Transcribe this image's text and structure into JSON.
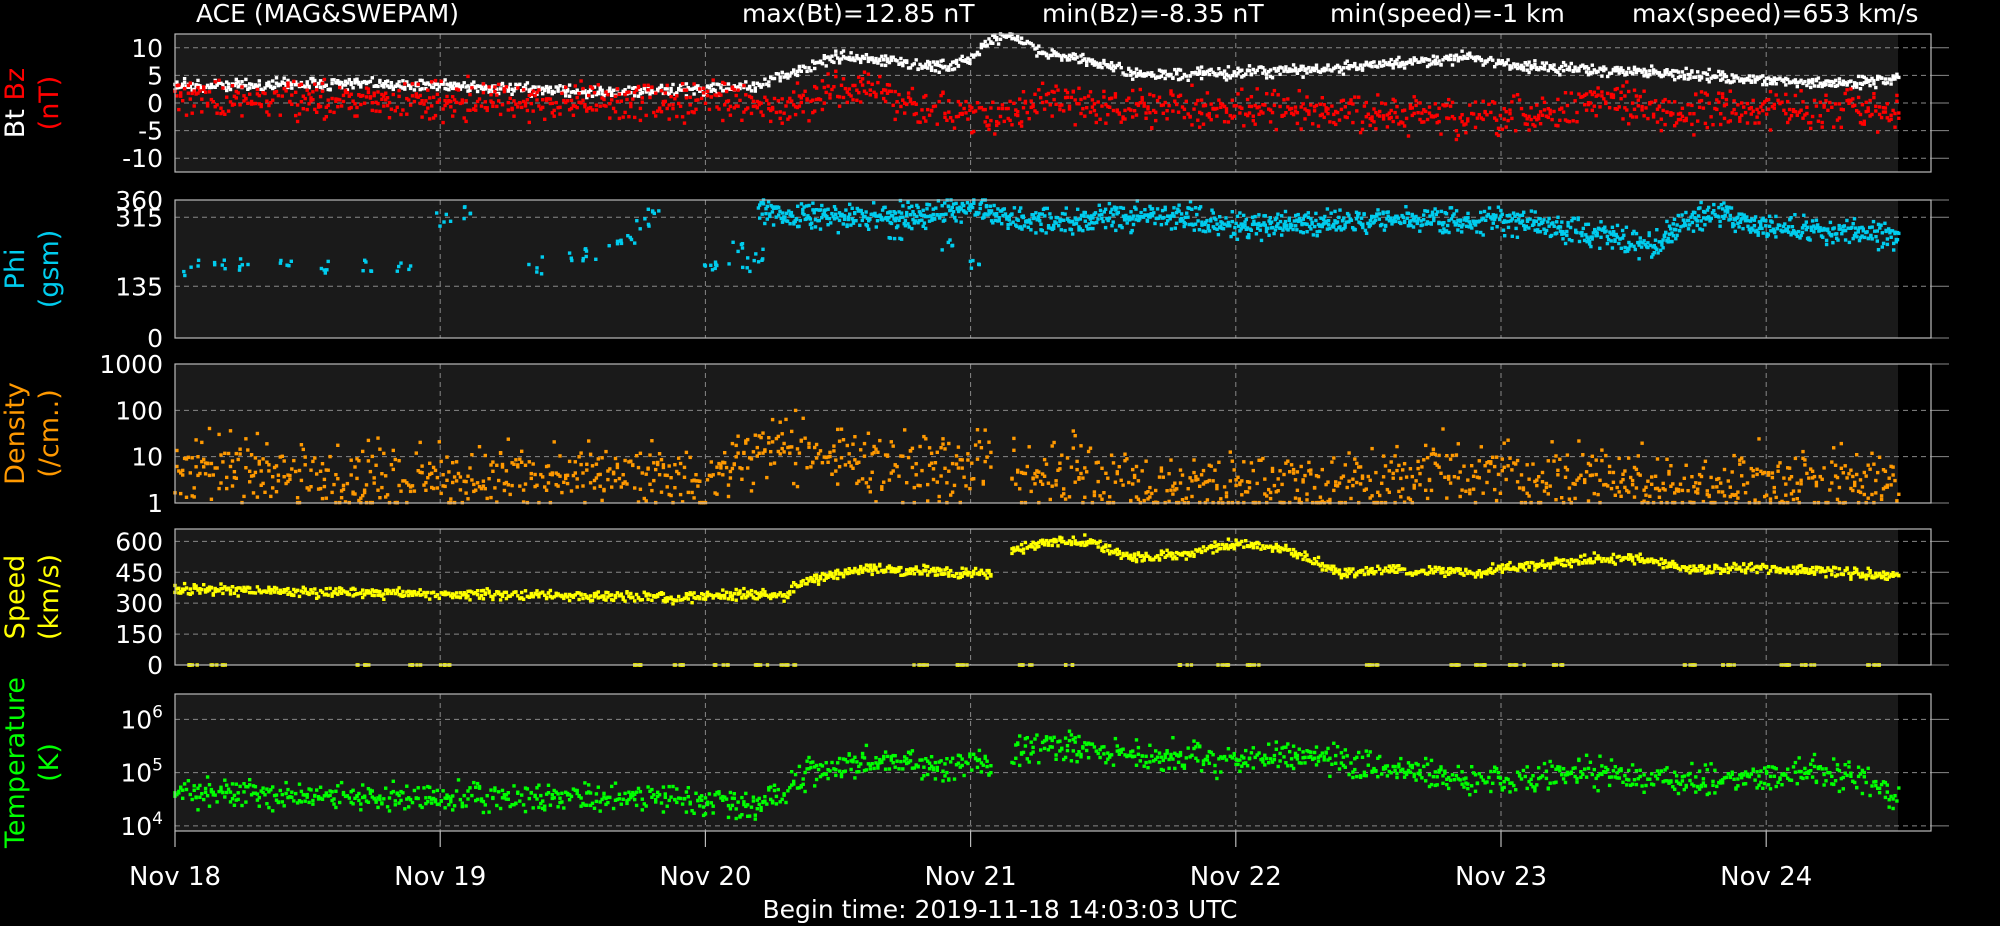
{
  "header": {
    "source": "ACE (MAG&SWEPAM)",
    "stats": [
      "max(Bt)=12.85 nT",
      "min(Bz)=-8.35 nT",
      "min(speed)=-1 km",
      "max(speed)=653 km/s"
    ]
  },
  "footer": {
    "begin_time": "Begin time: 2019-11-18 14:03:03 UTC"
  },
  "colors": {
    "bt": "#ffffff",
    "bz": "#ff0000",
    "phi": "#00ccee",
    "density": "#ff9900",
    "speed": "#ffff00",
    "temperature": "#00ff00",
    "panel_bg": "#1a1a1a",
    "grid": "#888888"
  },
  "chart_data": [
    {
      "type": "scatter",
      "ylabel_parts": [
        {
          "text": "Bt",
          "color": "#ffffff"
        },
        {
          "text": "Bz",
          "color": "#ff0000"
        },
        {
          "text": "(nT)",
          "color": "#ff0000"
        }
      ],
      "yscale": "linear",
      "ylim": [
        -12.5,
        12.5
      ],
      "yticks": [
        10,
        5,
        0,
        -5,
        -10
      ],
      "ytick_labels": [
        "10",
        "5",
        "0",
        "-5",
        "-10"
      ],
      "x_unit": "days since 2019-11-18 00:00 UTC",
      "xlim": [
        0,
        7.2
      ],
      "data_end": 6.5,
      "series": [
        {
          "name": "Bt",
          "color": "#ffffff",
          "x": [
            0,
            0.5,
            1,
            1.5,
            2,
            2.2,
            2.35,
            2.5,
            2.7,
            2.9,
            3.0,
            3.08,
            3.15,
            3.25,
            3.4,
            3.6,
            3.8,
            4.0,
            4.3,
            4.6,
            4.9,
            5.0,
            5.3,
            5.6,
            6.0,
            6.3,
            6.5
          ],
          "y": [
            3,
            3.5,
            3.2,
            2,
            2.5,
            3,
            6,
            8.5,
            7.5,
            6.5,
            8,
            11.5,
            12.5,
            9.5,
            8,
            5.5,
            5,
            5.5,
            6,
            7,
            8.5,
            7,
            6,
            5.5,
            4,
            3.5,
            4.5
          ],
          "noise": 0.5
        },
        {
          "name": "Bz",
          "color": "#ff0000",
          "x": [
            0,
            0.5,
            1,
            1.5,
            2,
            2.2,
            2.3,
            2.45,
            2.6,
            2.8,
            3.0,
            3.1,
            3.2,
            3.35,
            3.5,
            3.8,
            4.2,
            4.6,
            5.0,
            5.2,
            5.35,
            5.6,
            6.0,
            6.3,
            6.5
          ],
          "y": [
            1,
            0.5,
            0.5,
            0,
            0.5,
            1,
            -2,
            2,
            3,
            -1,
            -2,
            -3,
            -1,
            1,
            -1,
            -0.5,
            -1.5,
            -2,
            -3,
            -2,
            1,
            -1.5,
            -1,
            -1,
            -1
          ],
          "noise": 1.6
        }
      ]
    },
    {
      "type": "scatter",
      "ylabel_parts": [
        {
          "text": "Phi",
          "color": "#00ccee"
        },
        {
          "text": "(gsm)",
          "color": "#00ccee"
        }
      ],
      "yscale": "linear",
      "ylim": [
        0,
        360
      ],
      "yticks": [
        360,
        315,
        135,
        0
      ],
      "ytick_labels": [
        "360",
        "315",
        "135",
        "0"
      ],
      "x_unit": "days since 2019-11-18 00:00 UTC",
      "xlim": [
        0,
        7.2
      ],
      "data_end": 6.5,
      "series": [
        {
          "name": "Phi",
          "color": "#00ccee",
          "x": [
            2.2,
            2.5,
            2.8,
            3.0,
            3.2,
            3.5,
            3.8,
            4.0,
            4.3,
            4.6,
            4.9,
            5.1,
            5.3,
            5.5,
            5.6,
            5.7,
            5.8,
            6.0,
            6.2,
            6.4,
            6.5
          ],
          "y": [
            330,
            315,
            320,
            335,
            305,
            310,
            320,
            290,
            300,
            310,
            305,
            300,
            275,
            250,
            245,
            310,
            325,
            290,
            280,
            270,
            265
          ],
          "noise": 16
        },
        {
          "name": "Phi (scattered)",
          "color": "#00ccee",
          "x": [
            0.05,
            0.15,
            0.25,
            0.4,
            0.55,
            0.7,
            0.85,
            1.0,
            1.1,
            1.35,
            1.5,
            1.55,
            1.65,
            1.7,
            1.75,
            1.8,
            2.0,
            2.05,
            2.1,
            2.15,
            2.2,
            2.7,
            2.9,
            3.0
          ],
          "y": [
            185,
            190,
            200,
            190,
            185,
            180,
            185,
            310,
            320,
            190,
            210,
            230,
            250,
            270,
            300,
            330,
            190,
            200,
            240,
            190,
            210,
            260,
            240,
            200
          ],
          "noise": 10
        }
      ]
    },
    {
      "type": "scatter",
      "ylabel_parts": [
        {
          "text": "Density",
          "color": "#ff9900"
        },
        {
          "text": "(/cm..)",
          "color": "#ff9900"
        }
      ],
      "yscale": "log",
      "ylim": [
        1,
        1000
      ],
      "yticks": [
        1000,
        100,
        10,
        1
      ],
      "ytick_labels": [
        "1000",
        "100",
        "10",
        "1"
      ],
      "x_unit": "days since 2019-11-18 00:00 UTC",
      "xlim": [
        0,
        7.2
      ],
      "data_end": 6.5,
      "gap": [
        3.08,
        3.15
      ],
      "series": [
        {
          "name": "Density",
          "color": "#ff9900",
          "x": [
            0,
            0.3,
            0.6,
            0.9,
            1.2,
            1.5,
            1.8,
            1.9,
            1.98,
            2.1,
            2.25,
            2.4,
            2.6,
            2.8,
            3.0,
            3.08,
            3.15,
            3.4,
            3.6,
            3.9,
            4.2,
            4.5,
            4.8,
            5.1,
            5.3,
            5.6,
            5.9,
            6.2,
            6.5
          ],
          "y": [
            7,
            4.5,
            3,
            3.2,
            3.5,
            3,
            4.5,
            4,
            1.6,
            8,
            17,
            11,
            7,
            6,
            7,
            11,
            4,
            4.5,
            2.5,
            2.3,
            2.2,
            2.5,
            5,
            2.5,
            3.5,
            2.2,
            3,
            3,
            3
          ],
          "noise": 0.35
        }
      ]
    },
    {
      "type": "scatter",
      "ylabel_parts": [
        {
          "text": "Speed",
          "color": "#ffff00"
        },
        {
          "text": "(km/s)",
          "color": "#ffff00"
        }
      ],
      "yscale": "linear",
      "ylim": [
        0,
        660
      ],
      "yticks": [
        600,
        450,
        300,
        150,
        0
      ],
      "ytick_labels": [
        "600",
        "450",
        "300",
        "150",
        "0"
      ],
      "x_unit": "days since 2019-11-18 00:00 UTC",
      "xlim": [
        0,
        7.2
      ],
      "data_end": 6.5,
      "gap": [
        3.08,
        3.15
      ],
      "series": [
        {
          "name": "Speed",
          "color": "#ffff00",
          "x": [
            0,
            0.5,
            1,
            1.5,
            1.9,
            2.1,
            2.3,
            2.35,
            2.45,
            2.6,
            2.8,
            3.0,
            3.08,
            3.15,
            3.3,
            3.45,
            3.6,
            3.8,
            4.0,
            4.2,
            4.4,
            4.6,
            4.9,
            5.1,
            5.3,
            5.5,
            5.7,
            6.0,
            6.3,
            6.5
          ],
          "y": [
            370,
            355,
            345,
            335,
            325,
            345,
            335,
            390,
            430,
            465,
            460,
            445,
            445,
            560,
            595,
            600,
            520,
            535,
            585,
            555,
            445,
            460,
            450,
            480,
            510,
            520,
            465,
            470,
            450,
            430
          ],
          "noise": 12
        },
        {
          "name": "Speed (dropouts)",
          "color": "#ffff00",
          "x": [
            0.05,
            0.15,
            0.7,
            0.9,
            1.0,
            1.75,
            1.9,
            2.05,
            2.2,
            2.3,
            2.8,
            2.95,
            3.2,
            3.35,
            3.8,
            3.95,
            4.05,
            4.5,
            4.8,
            4.9,
            5.05,
            5.2,
            5.7,
            5.85,
            6.05,
            6.15,
            6.4
          ],
          "y": [
            0,
            0,
            0,
            0,
            0,
            0,
            0,
            0,
            0,
            0,
            0,
            0,
            0,
            0,
            0,
            0,
            0,
            0,
            0,
            0,
            0,
            0,
            0,
            0,
            0,
            0,
            0
          ],
          "noise": 0
        }
      ]
    },
    {
      "type": "scatter",
      "ylabel_parts": [
        {
          "text": "Temperature",
          "color": "#00ff00"
        },
        {
          "text": "(K)",
          "color": "#00ff00"
        }
      ],
      "yscale": "log",
      "ylim": [
        8000,
        3000000
      ],
      "yticks": [
        1000000,
        100000,
        10000
      ],
      "ytick_labels": [
        "10^6",
        "10^5",
        "10^4"
      ],
      "x_unit": "days since 2019-11-18 00:00 UTC",
      "xlim": [
        0,
        7.2
      ],
      "data_end": 6.5,
      "gap": [
        3.08,
        3.15
      ],
      "series": [
        {
          "name": "Temperature",
          "color": "#00ff00",
          "x": [
            0,
            0.3,
            0.6,
            1.0,
            1.4,
            1.8,
            2.0,
            2.2,
            2.3,
            2.4,
            2.5,
            2.7,
            2.9,
            3.08,
            3.15,
            3.3,
            3.5,
            3.7,
            4.0,
            4.3,
            4.5,
            4.7,
            4.9,
            5.1,
            5.3,
            5.5,
            5.7,
            5.9,
            6.1,
            6.3,
            6.45,
            6.5
          ],
          "y": [
            45000,
            40000,
            35000,
            35000,
            35000,
            35000,
            30000,
            25000,
            40000,
            110000,
            130000,
            160000,
            130000,
            150000,
            250000,
            320000,
            250000,
            200000,
            180000,
            200000,
            130000,
            100000,
            70000,
            70000,
            110000,
            80000,
            65000,
            80000,
            95000,
            95000,
            40000,
            30000
          ],
          "noise": 0.13
        }
      ]
    }
  ],
  "x_axis": {
    "tick_days": [
      0,
      1,
      2,
      3,
      4,
      5,
      6
    ],
    "tick_labels": [
      "Nov 18",
      "Nov 19",
      "Nov 20",
      "Nov 21",
      "Nov 22",
      "Nov 23",
      "Nov 24"
    ]
  }
}
